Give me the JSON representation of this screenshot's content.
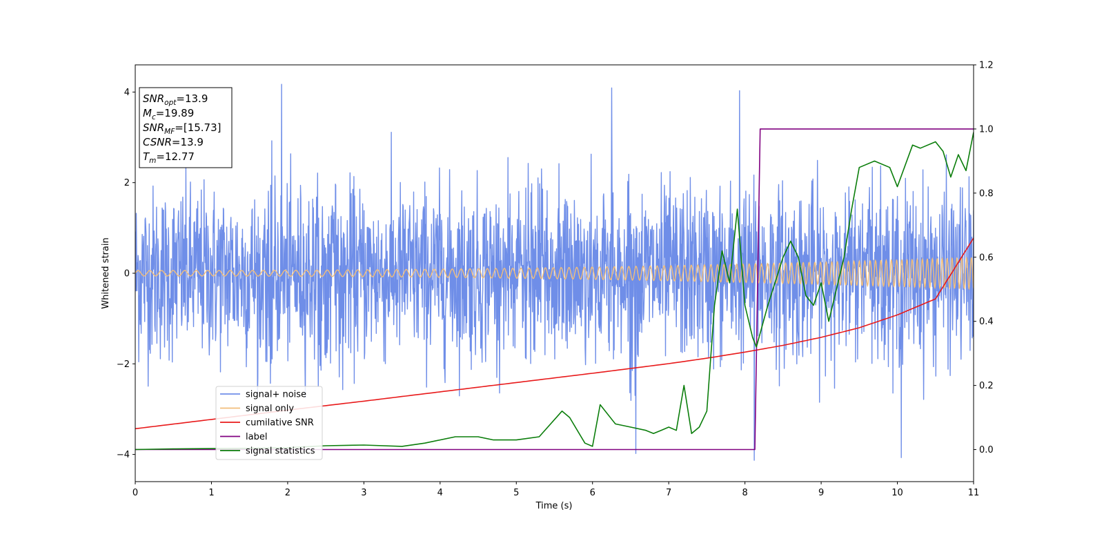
{
  "chart_data": {
    "type": "line",
    "xlabel": "Time (s)",
    "ylabel": "Whitened strain",
    "xlim": [
      0,
      11
    ],
    "ylim": [
      -4.6,
      4.6
    ],
    "y2lim": [
      -0.1,
      1.2
    ],
    "x_ticks": [
      0,
      1,
      2,
      3,
      4,
      5,
      6,
      7,
      8,
      9,
      10,
      11
    ],
    "y_ticks": [
      -4,
      -2,
      0,
      2,
      4
    ],
    "y2_ticks": [
      "0.0",
      "0.2",
      "0.4",
      "0.6",
      "0.8",
      "1.0",
      "1.2"
    ],
    "grid": false,
    "legend_position": "lower-left",
    "annotation_box": {
      "position": "top-left",
      "lines": [
        {
          "symbol": "SNR",
          "subscript": "opt",
          "value": "=13.9"
        },
        {
          "symbol": "M",
          "subscript": "c",
          "value": "=19.89"
        },
        {
          "symbol": "SNR",
          "subscript": "MF",
          "value": "=[15.73]"
        },
        {
          "symbol": "CSNR",
          "subscript": "",
          "value": "=13.9"
        },
        {
          "symbol": "T",
          "subscript": "m",
          "value": "=12.77"
        }
      ]
    },
    "series": [
      {
        "name": "signal+ noise",
        "axis": "left",
        "color": "#6f8ee8",
        "noise_std": 1.0,
        "envelope": [
          -2.9,
          3.4
        ],
        "extremes": [
          [
            1.92,
            4.17
          ],
          [
            8.12,
            -4.13
          ],
          [
            10.05,
            -4.07
          ],
          [
            6.57,
            -3.98
          ],
          [
            7.93,
            4.03
          ],
          [
            6.25,
            4.09
          ]
        ]
      },
      {
        "name": "signal only",
        "axis": "left",
        "color": "#f2be7a",
        "chirp": {
          "amplitude_start": 0.06,
          "amplitude_end": 0.35,
          "freq_start": 6.5,
          "freq_end": 16
        }
      },
      {
        "name": "cumilative SNR",
        "axis": "right",
        "color": "#e8191a",
        "x": [
          0,
          1,
          2,
          3,
          4,
          5,
          6,
          7,
          7.5,
          8,
          8.5,
          9,
          9.5,
          10,
          10.5,
          11
        ],
        "y": [
          0.065,
          0.094,
          0.123,
          0.151,
          0.18,
          0.209,
          0.238,
          0.268,
          0.285,
          0.304,
          0.325,
          0.35,
          0.38,
          0.42,
          0.47,
          0.66
        ]
      },
      {
        "name": "label",
        "axis": "right",
        "color": "#800080",
        "x": [
          0,
          8.13,
          8.2,
          11
        ],
        "y": [
          0.0,
          0.0,
          1.0,
          1.0
        ]
      },
      {
        "name": "signal statistics",
        "axis": "right",
        "color": "#0a7d0a",
        "x": [
          0,
          0.5,
          1,
          1.5,
          2,
          2.5,
          3,
          3.5,
          3.8,
          4,
          4.2,
          4.5,
          4.7,
          5,
          5.3,
          5.6,
          5.7,
          5.9,
          6.0,
          6.1,
          6.3,
          6.5,
          6.7,
          6.8,
          6.9,
          7.0,
          7.1,
          7.2,
          7.3,
          7.4,
          7.5,
          7.6,
          7.7,
          7.8,
          7.9,
          8.0,
          8.1,
          8.15,
          8.3,
          8.5,
          8.6,
          8.7,
          8.8,
          8.9,
          9.0,
          9.1,
          9.2,
          9.3,
          9.4,
          9.5,
          9.7,
          9.9,
          10.0,
          10.2,
          10.3,
          10.5,
          10.6,
          10.7,
          10.8,
          10.9,
          11.0
        ],
        "y": [
          0.0,
          0.002,
          0.003,
          0.004,
          0.006,
          0.012,
          0.014,
          0.01,
          0.02,
          0.03,
          0.04,
          0.04,
          0.03,
          0.03,
          0.04,
          0.12,
          0.1,
          0.02,
          0.01,
          0.14,
          0.08,
          0.07,
          0.06,
          0.05,
          0.06,
          0.07,
          0.06,
          0.2,
          0.05,
          0.07,
          0.12,
          0.45,
          0.62,
          0.52,
          0.75,
          0.45,
          0.35,
          0.32,
          0.45,
          0.6,
          0.65,
          0.6,
          0.48,
          0.45,
          0.52,
          0.4,
          0.5,
          0.6,
          0.75,
          0.88,
          0.9,
          0.88,
          0.82,
          0.95,
          0.94,
          0.96,
          0.93,
          0.85,
          0.92,
          0.87,
          0.99
        ]
      }
    ]
  }
}
